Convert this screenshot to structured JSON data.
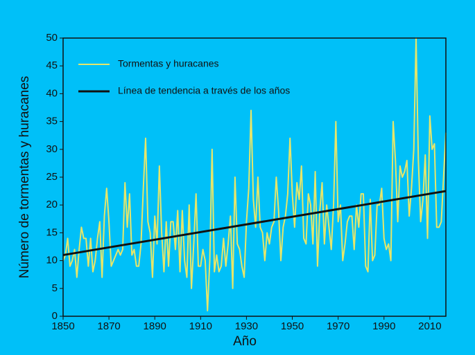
{
  "chart_data": {
    "type": "line",
    "xlabel": "Año",
    "ylabel": "Número de tormentas y huracanes",
    "xlim": [
      1850,
      2017
    ],
    "xticks": [
      1850,
      1870,
      1890,
      1910,
      1930,
      1950,
      1970,
      1990,
      2010
    ],
    "ylim": [
      0,
      50
    ],
    "yticks": [
      0,
      5,
      10,
      15,
      20,
      25,
      30,
      35,
      40,
      45,
      50
    ],
    "legend": "upper left",
    "series": [
      {
        "name": "Tormentas y huracanes",
        "color": "#e6e66a",
        "width": 2,
        "x": [
          1850,
          1851,
          1852,
          1853,
          1854,
          1855,
          1856,
          1857,
          1858,
          1859,
          1860,
          1861,
          1862,
          1863,
          1864,
          1865,
          1866,
          1867,
          1868,
          1869,
          1870,
          1871,
          1872,
          1873,
          1874,
          1875,
          1876,
          1877,
          1878,
          1879,
          1880,
          1881,
          1882,
          1883,
          1884,
          1885,
          1886,
          1887,
          1888,
          1889,
          1890,
          1891,
          1892,
          1893,
          1894,
          1895,
          1896,
          1897,
          1898,
          1899,
          1900,
          1901,
          1902,
          1903,
          1904,
          1905,
          1906,
          1907,
          1908,
          1909,
          1910,
          1911,
          1912,
          1913,
          1914,
          1915,
          1916,
          1917,
          1918,
          1919,
          1920,
          1921,
          1922,
          1923,
          1924,
          1925,
          1926,
          1927,
          1928,
          1929,
          1930,
          1931,
          1932,
          1933,
          1934,
          1935,
          1936,
          1937,
          1938,
          1939,
          1940,
          1941,
          1942,
          1943,
          1944,
          1945,
          1946,
          1947,
          1948,
          1949,
          1950,
          1951,
          1952,
          1953,
          1954,
          1955,
          1956,
          1957,
          1958,
          1959,
          1960,
          1961,
          1962,
          1963,
          1964,
          1965,
          1966,
          1967,
          1968,
          1969,
          1970,
          1971,
          1972,
          1973,
          1974,
          1975,
          1976,
          1977,
          1978,
          1979,
          1980,
          1981,
          1982,
          1983,
          1984,
          1985,
          1986,
          1987,
          1988,
          1989,
          1990,
          1991,
          1992,
          1993,
          1994,
          1995,
          1996,
          1997,
          1998,
          1999,
          2000,
          2001,
          2002,
          2003,
          2004,
          2005,
          2006,
          2007,
          2008,
          2009,
          2010,
          2011,
          2012,
          2013,
          2014,
          2015,
          2016,
          2017
        ],
        "values": [
          10,
          11,
          14,
          9,
          10,
          12,
          7,
          12,
          16,
          14,
          14,
          9,
          14,
          8,
          10,
          14,
          17,
          7,
          18,
          23,
          17,
          9,
          10,
          11,
          12,
          11,
          12,
          24,
          16,
          22,
          11,
          12,
          9,
          9,
          13,
          23,
          32,
          17,
          15,
          7,
          18,
          13,
          27,
          15,
          8,
          17,
          9,
          17,
          17,
          12,
          19,
          8,
          19,
          10,
          7,
          20,
          5,
          13,
          22,
          9,
          9,
          12,
          10,
          1,
          10,
          30,
          8,
          11,
          8,
          9,
          14,
          9,
          13,
          18,
          5,
          25,
          13,
          12,
          9,
          7,
          17,
          23,
          37,
          21,
          16,
          25,
          16,
          15,
          10,
          15,
          13,
          16,
          17,
          25,
          19,
          10,
          16,
          18,
          22,
          32,
          22,
          16,
          24,
          21,
          27,
          14,
          13,
          22,
          20,
          13,
          26,
          9,
          19,
          24,
          13,
          20,
          16,
          12,
          20,
          35,
          17,
          20,
          10,
          13,
          17,
          18,
          18,
          12,
          20,
          16,
          22,
          22,
          9,
          8,
          21,
          10,
          11,
          20,
          20,
          23,
          14,
          12,
          13,
          10,
          35,
          28,
          17,
          27,
          25,
          26,
          28,
          18,
          23,
          30,
          50,
          28,
          17,
          21,
          29,
          14,
          36,
          30,
          31,
          16,
          16,
          17,
          25,
          33
        ]
      },
      {
        "name": "Línea de tendencia a través de los años",
        "color": "#111111",
        "width": 3,
        "x": [
          1850,
          2017
        ],
        "values": [
          11,
          22.5
        ]
      }
    ]
  }
}
